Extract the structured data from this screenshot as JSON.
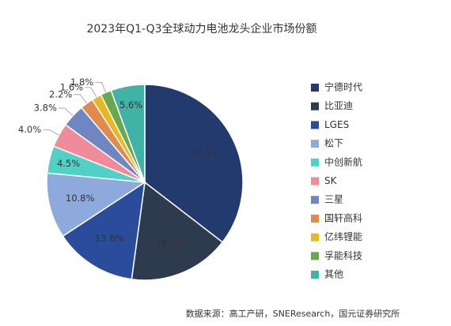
{
  "chart_data": {
    "type": "pie",
    "title": "2023年Q1-Q3全球动力电池龙头企业市场份额",
    "categories": [
      "宁德时代",
      "比亚迪",
      "LGES",
      "松下",
      "中创新航",
      "SK",
      "三星",
      "国轩高科",
      "亿纬锂能",
      "孚能科技",
      "其他"
    ],
    "values": [
      35.5,
      16.7,
      13.6,
      10.8,
      4.5,
      4.0,
      3.8,
      2.2,
      1.6,
      1.8,
      5.6
    ],
    "value_labels": [
      "35.5%",
      "16.7%",
      "13.6%",
      "10.8%",
      "4.5%",
      "4.0%",
      "3.8%",
      "2.2%",
      "1.6%",
      "1.8%",
      "5.6%"
    ],
    "colors": [
      "#233a6e",
      "#2e3b4f",
      "#2b4c9b",
      "#8eaadc",
      "#4fd1c6",
      "#f08b9a",
      "#6f86c3",
      "#e08a4b",
      "#e6b823",
      "#6aa84f",
      "#3fb3a6"
    ],
    "source": "数据来源：高工产研，SNEResearch，国元证券研究所"
  }
}
